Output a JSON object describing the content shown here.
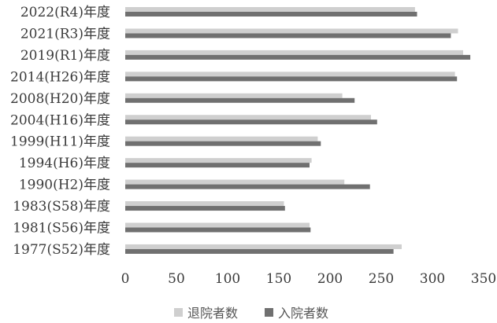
{
  "chart_data": {
    "type": "bar",
    "orientation": "horizontal",
    "categories": [
      "2022(R4)年度",
      "2021(R3)年度",
      "2019(R1)年度",
      "2014(H26)年度",
      "2008(H20)年度",
      "2004(H16)年度",
      "1999(H11)年度",
      "1994(H6)年度",
      "1990(H2)年度",
      "1983(S58)年度",
      "1981(S56)年度",
      "1977(S52)年度"
    ],
    "series": [
      {
        "name": "退院者数",
        "color": "#cfcfcf",
        "values": [
          283,
          325,
          330,
          322,
          212,
          240,
          188,
          182,
          214,
          155,
          180,
          270
        ]
      },
      {
        "name": "入院者数",
        "color": "#707070",
        "values": [
          285,
          318,
          337,
          324,
          224,
          246,
          191,
          180,
          239,
          156,
          181,
          262
        ]
      }
    ],
    "x_ticks": [
      "0",
      "50",
      "100",
      "150",
      "200",
      "250",
      "300",
      "350"
    ],
    "xlim": [
      0,
      350
    ],
    "grid": false,
    "legend_position": "bottom"
  }
}
